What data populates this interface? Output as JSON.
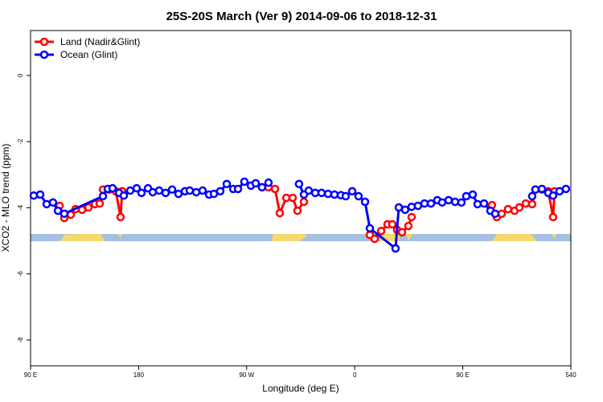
{
  "chart_data": {
    "type": "line",
    "title": "25S-20S March (Ver 9)   2014-09-06 to 2018-12-31",
    "x_label": "Longitude (deg E)",
    "y_label": "XCO2 - MLO trend (ppm)",
    "xlim": [
      90,
      540
    ],
    "ylim": [
      -8.78,
      1.36
    ],
    "xticks": [
      {
        "value": 90,
        "label": "90 E"
      },
      180,
      {
        "value": 270,
        "label": "90 W"
      },
      {
        "value": 360,
        "label": "0"
      },
      {
        "value": 450,
        "label": "90 E"
      },
      540
    ],
    "yticks": [
      0,
      -2,
      -4,
      -6,
      -8
    ],
    "legend": "top-left",
    "series": [
      {
        "name": "Land (Nadir&Glint)",
        "color": "#ff0000",
        "x": [
          114.2,
          118.1,
          123.5,
          127.5,
          132.9,
          138.2,
          143.6,
          147.6,
          150.3,
          155.7,
          161.0,
          165.0,
          166.3,
          null,
          288.2,
          293.6,
          297.6,
          303.0,
          308.3,
          312.3,
          317.7,
          null,
          372.6,
          376.6,
          382.0,
          387.3,
          391.3,
          395.3,
          399.4,
          404.7,
          407.4,
          null,
          474.3,
          478.3,
          482.4,
          487.7,
          493.1,
          497.1,
          502.5,
          507.8,
          510.5,
          515.9,
          521.2,
          525.2,
          526.5
        ],
        "values": [
          -3.94,
          -4.31,
          -4.21,
          -4.04,
          -4.06,
          -3.99,
          -3.89,
          -3.87,
          -3.45,
          -3.45,
          -3.5,
          -4.28,
          -3.5,
          null,
          -3.38,
          -3.43,
          -4.16,
          -3.7,
          -3.7,
          -4.09,
          -3.82,
          null,
          -4.82,
          -4.94,
          -4.7,
          -4.5,
          -4.5,
          -4.67,
          -4.74,
          -4.55,
          -4.28,
          null,
          -3.92,
          -4.28,
          -4.18,
          -4.04,
          -4.09,
          -3.99,
          -3.87,
          -3.89,
          -3.45,
          -3.45,
          -3.5,
          -4.28,
          -3.5
        ]
      },
      {
        "name": "Ocean (Glint)",
        "color": "#0000ff",
        "x": [
          92.7,
          98.0,
          103.4,
          108.7,
          112.8,
          118.1,
          150.3,
          154.3,
          158.3,
          163.7,
          167.7,
          173.0,
          178.4,
          182.4,
          187.8,
          191.8,
          197.1,
          202.5,
          207.9,
          213.2,
          218.6,
          222.6,
          228.0,
          233.3,
          238.7,
          242.7,
          248.0,
          253.4,
          258.8,
          262.8,
          268.1,
          273.5,
          277.5,
          282.8,
          288.2,
          null,
          313.6,
          317.7,
          321.7,
          327.1,
          332.4,
          337.8,
          343.1,
          348.5,
          352.5,
          357.9,
          363.2,
          368.6,
          372.6,
          394.0,
          396.7,
          402.0,
          407.4,
          412.7,
          418.1,
          423.5,
          428.8,
          432.8,
          438.2,
          443.6,
          448.9,
          452.9,
          458.3,
          462.3,
          467.7,
          473.0,
          477.0,
          null,
          507.8,
          510.5,
          515.9,
          521.2,
          525.2,
          530.6,
          535.9
        ],
        "values": [
          -3.63,
          -3.6,
          -3.89,
          -3.84,
          -4.09,
          -4.18,
          -3.65,
          -3.43,
          -3.41,
          -3.55,
          -3.63,
          -3.48,
          -3.41,
          -3.55,
          -3.41,
          -3.53,
          -3.48,
          -3.55,
          -3.45,
          -3.58,
          -3.5,
          -3.48,
          -3.53,
          -3.48,
          -3.6,
          -3.58,
          -3.5,
          -3.28,
          -3.43,
          -3.43,
          -3.21,
          -3.33,
          -3.26,
          -3.38,
          -3.24,
          null,
          -3.28,
          -3.6,
          -3.48,
          -3.55,
          -3.55,
          -3.58,
          -3.6,
          -3.62,
          -3.65,
          -3.5,
          -3.65,
          -3.82,
          -4.62,
          -5.23,
          -3.99,
          -4.06,
          -3.97,
          -3.94,
          -3.87,
          -3.87,
          -3.77,
          -3.84,
          -3.77,
          -3.82,
          -3.84,
          -3.65,
          -3.6,
          -3.89,
          -3.87,
          -4.09,
          -4.18,
          null,
          -3.65,
          -3.45,
          -3.43,
          -3.55,
          -3.63,
          -3.5,
          -3.43
        ]
      }
    ]
  }
}
